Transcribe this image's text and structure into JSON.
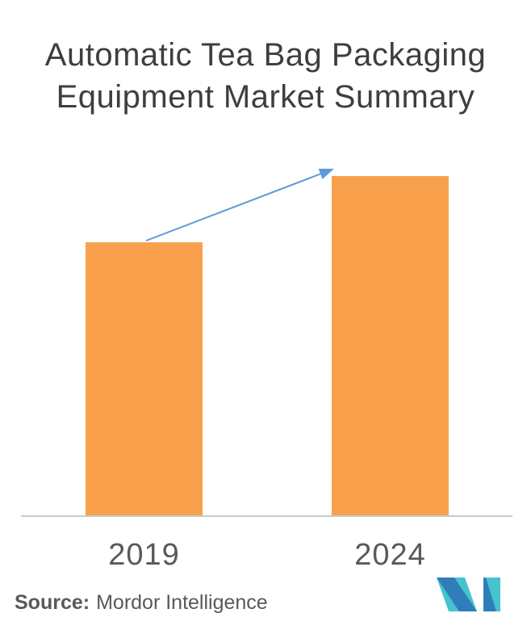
{
  "title": {
    "line1": "Automatic Tea Bag Packaging",
    "line2": "Equipment Market Summary"
  },
  "chart_data": {
    "type": "bar",
    "title": "Automatic Tea Bag Packaging Equipment Market Summary",
    "categories": [
      "2019",
      "2024"
    ],
    "values": [
      80.5,
      100
    ],
    "value_axis_note": "no value axis or data labels shown; values are relative bar heights with 2024 normalized to 100",
    "xlabel": "",
    "ylabel": "",
    "ylim": [
      0,
      100
    ],
    "grid": false,
    "legend": false,
    "bar_color": "#f9a04d",
    "annotations": [
      "blue upward trend arrow from top of 2019 bar to top of 2024 bar"
    ]
  },
  "footer": {
    "source_label": "Source:",
    "source_value": "Mordor Intelligence"
  },
  "logo": {
    "name": "mordor-intelligence-logo-mark"
  },
  "colors": {
    "background": "#ffffff",
    "bar": "#f9a04d",
    "arrow": "#5b9bd5",
    "axis": "#c9c9c9",
    "title_text": "#3e3e40",
    "label_text": "#595959",
    "source_text": "#595959",
    "logo_teal": "#45c3ce",
    "logo_blue": "#2f7eb9"
  }
}
